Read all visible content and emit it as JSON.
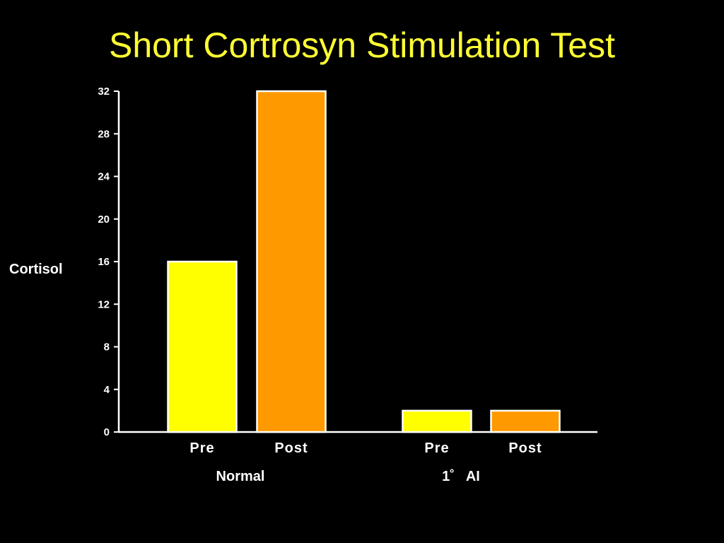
{
  "title": "Short Cortrosyn Stimulation Test",
  "colors": {
    "background": "#000000",
    "title": "#FFFF33",
    "axis": "#FFFFFF",
    "pre_bar": "#FFFF00",
    "post_bar": "#FF9900"
  },
  "chart_data": {
    "type": "bar",
    "title": "Short Cortrosyn Stimulation Test",
    "ylabel": "Cortisol",
    "xlabel": "",
    "ylim": [
      0,
      32
    ],
    "y_ticks": [
      0,
      4,
      8,
      12,
      16,
      20,
      24,
      28,
      32
    ],
    "grid": false,
    "groups": [
      {
        "name": "Normal",
        "bars": [
          {
            "label": "Pre",
            "value": 16,
            "color": "#FFFF00"
          },
          {
            "label": "Post",
            "value": 32,
            "color": "#FF9900"
          }
        ]
      },
      {
        "name": "1˚   AI",
        "bars": [
          {
            "label": "Pre",
            "value": 2,
            "color": "#FFFF00"
          },
          {
            "label": "Post",
            "value": 2,
            "color": "#FF9900"
          }
        ]
      }
    ]
  }
}
